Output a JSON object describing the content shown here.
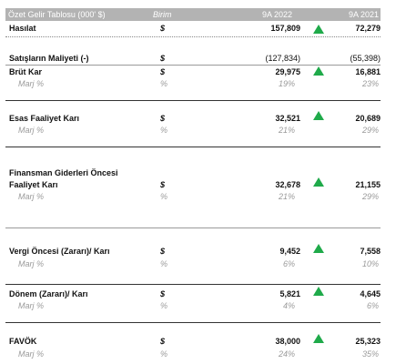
{
  "header": {
    "title": "Özet Gelir Tablosu (000' $)",
    "unit": "Birim",
    "col1": "9A 2022",
    "col2": "9A 2021"
  },
  "rows": {
    "hasilat": {
      "label": "Hasılat",
      "currency": "$",
      "v2022": "157,809",
      "v2021": "72,279"
    },
    "maliyet": {
      "label": "Satışların Maliyeti (-)",
      "currency": "$",
      "v2022": "(127,834)",
      "v2021": "(55,398)"
    },
    "brut": {
      "label": "Brüt Kar",
      "currency": "$",
      "v2022": "29,975",
      "v2021": "16,881",
      "margin_label": "Marj %",
      "margin_unit": "%",
      "margin2022": "19%",
      "margin2021": "23%"
    },
    "esas": {
      "label": "Esas Faaliyet Karı",
      "currency": "$",
      "v2022": "32,521",
      "v2021": "20,689",
      "margin_label": "Marj %",
      "margin_unit": "%",
      "margin2022": "21%",
      "margin2021": "29%"
    },
    "finansman": {
      "label_line1": "Finansman Giderleri Öncesi",
      "label_line2": "Faaliyet Karı",
      "currency": "$",
      "v2022": "32,678",
      "v2021": "21,155",
      "margin_label": "Marj %",
      "margin_unit": "%",
      "margin2022": "21%",
      "margin2021": "29%"
    },
    "vergi": {
      "label": "Vergi Öncesi (Zararı)/ Karı",
      "currency": "$",
      "v2022": "9,452",
      "v2021": "7,558",
      "margin_label": "Marj %",
      "margin_unit": "%",
      "margin2022": "6%",
      "margin2021": "10%"
    },
    "donem": {
      "label": "Dönem (Zararı)/ Karı",
      "currency": "$",
      "v2022": "5,821",
      "v2021": "4,645",
      "margin_label": "Marj %",
      "margin_unit": "%",
      "margin2022": "4%",
      "margin2021": "6%"
    },
    "favok": {
      "label": "FAVÖK",
      "currency": "$",
      "v2022": "38,000",
      "v2021": "25,323",
      "margin_label": "Marj %",
      "margin_unit": "%",
      "margin2022": "24%",
      "margin2021": "35%"
    }
  },
  "indicator_color": "#1faa4a",
  "indicator_icon": "up-triangle-icon"
}
